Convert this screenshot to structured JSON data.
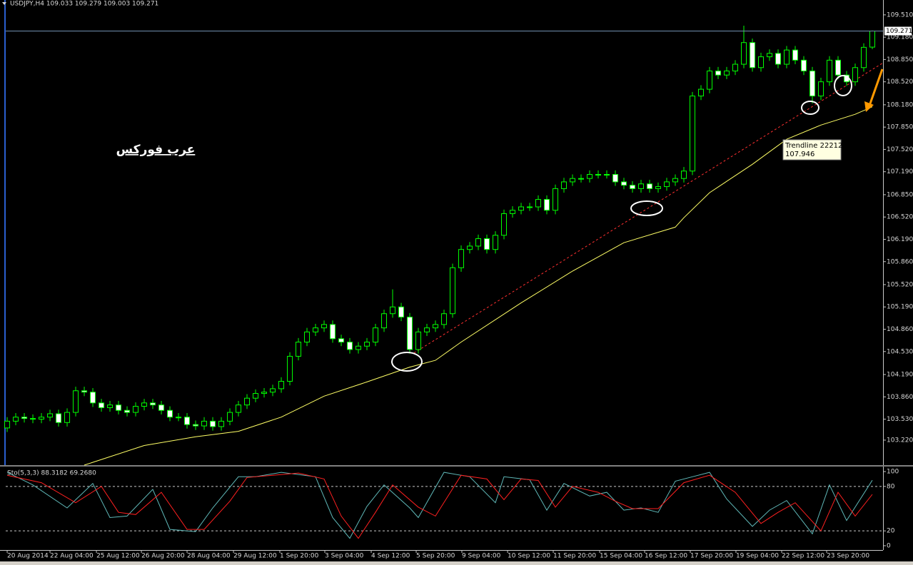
{
  "chart_data": [
    {
      "type": "candlestick",
      "title": "USDJPY,H4  109.033 109.279 109.003 109.271",
      "annotation": "عرب فوركس",
      "xlim": [
        -0.17,
        102.25
      ],
      "ylim": [
        102.85,
        109.73
      ],
      "yticks": [
        {
          "value": 103.22,
          "label": "103.220"
        },
        {
          "value": 103.53,
          "label": "103.530"
        },
        {
          "value": 103.86,
          "label": "103.860"
        },
        {
          "value": 104.19,
          "label": "104.190"
        },
        {
          "value": 104.53,
          "label": "104.530"
        },
        {
          "value": 104.86,
          "label": "104.860"
        },
        {
          "value": 105.19,
          "label": "105.190"
        },
        {
          "value": 105.52,
          "label": "105.520"
        },
        {
          "value": 105.86,
          "label": "105.860"
        },
        {
          "value": 106.19,
          "label": "106.190"
        },
        {
          "value": 106.52,
          "label": "106.520"
        },
        {
          "value": 106.85,
          "label": "106.850"
        },
        {
          "value": 107.19,
          "label": "107.190"
        },
        {
          "value": 107.52,
          "label": "107.520"
        },
        {
          "value": 107.85,
          "label": "107.850"
        },
        {
          "value": 108.18,
          "label": "108.180"
        },
        {
          "value": 108.52,
          "label": "108.520"
        },
        {
          "value": 108.85,
          "label": "108.850"
        },
        {
          "value": 109.18,
          "label": "109.180"
        },
        {
          "value": 109.51,
          "label": "109.510"
        }
      ],
      "xticks": [
        {
          "value": 0,
          "label": "20 Aug 2014"
        },
        {
          "value": 5,
          "label": "22 Aug 04:00"
        },
        {
          "value": 10.42,
          "label": "25 Aug 12:00"
        },
        {
          "value": 15.67,
          "label": "26 Aug 20:00"
        },
        {
          "value": 21,
          "label": "28 Aug 04:00"
        },
        {
          "value": 26.42,
          "label": "29 Aug 12:00"
        },
        {
          "value": 31.83,
          "label": "1 Sep 20:00"
        },
        {
          "value": 37.08,
          "label": "3 Sep 04:00"
        },
        {
          "value": 42.5,
          "label": "4 Sep 12:00"
        },
        {
          "value": 47.75,
          "label": "5 Sep 20:00"
        },
        {
          "value": 53.08,
          "label": "9 Sep 04:00"
        },
        {
          "value": 58.42,
          "label": "10 Sep 12:00"
        },
        {
          "value": 63.75,
          "label": "11 Sep 20:00"
        },
        {
          "value": 69.17,
          "label": "15 Sep 04:00"
        },
        {
          "value": 74.42,
          "label": "16 Sep 12:00"
        },
        {
          "value": 79.75,
          "label": "17 Sep 20:00"
        },
        {
          "value": 85.08,
          "label": "19 Sep 04:00"
        },
        {
          "value": 90.42,
          "label": "22 Sep 12:00"
        },
        {
          "value": 95.67,
          "label": "23 Sep 20:00"
        }
      ],
      "wick_color": "#00ff00",
      "up_fill": "#000000",
      "down_fill": "#ffffff",
      "open": [
        103.4,
        103.5,
        103.56,
        103.54,
        103.53,
        103.56,
        103.61,
        103.48,
        103.63,
        103.95,
        103.93,
        103.77,
        103.7,
        103.74,
        103.66,
        103.63,
        103.72,
        103.77,
        103.74,
        103.66,
        103.56,
        103.56,
        103.45,
        103.43,
        103.5,
        103.42,
        103.5,
        103.63,
        103.74,
        103.84,
        103.91,
        103.93,
        103.98,
        104.09,
        104.46,
        104.67,
        104.82,
        104.88,
        104.93,
        104.72,
        104.67,
        104.56,
        104.61,
        104.67,
        104.88,
        105.09,
        105.19,
        105.04,
        104.56,
        104.82,
        104.88,
        104.93,
        105.09,
        105.77,
        106.04,
        106.09,
        106.2,
        106.04,
        106.25,
        106.57,
        106.62,
        106.67,
        106.67,
        106.78,
        106.62,
        106.94,
        107.04,
        107.09,
        107.09,
        107.15,
        107.15,
        107.15,
        107.04,
        106.99,
        106.94,
        107.01,
        106.94,
        106.97,
        107.04,
        107.09,
        107.2,
        108.31,
        108.41,
        108.68,
        108.62,
        108.68,
        108.78,
        109.1,
        108.73,
        108.89,
        108.94,
        108.78,
        108.99,
        108.84,
        108.68,
        108.31,
        108.52,
        108.84,
        108.62,
        108.52,
        108.73,
        109.033
      ],
      "high": [
        103.56,
        103.62,
        103.62,
        103.6,
        103.62,
        103.67,
        103.67,
        103.69,
        104.01,
        104.01,
        103.99,
        103.83,
        103.8,
        103.8,
        103.72,
        103.78,
        103.83,
        103.83,
        103.8,
        103.72,
        103.62,
        103.62,
        103.51,
        103.56,
        103.56,
        103.56,
        103.69,
        103.8,
        103.9,
        103.97,
        103.99,
        104.04,
        104.15,
        104.52,
        104.73,
        104.88,
        104.94,
        104.99,
        104.99,
        104.78,
        104.73,
        104.67,
        104.73,
        104.94,
        105.15,
        105.45,
        105.25,
        105.1,
        104.88,
        104.94,
        104.99,
        105.15,
        105.83,
        106.1,
        106.15,
        106.26,
        106.26,
        106.31,
        106.63,
        106.68,
        106.73,
        106.73,
        106.84,
        106.84,
        107.0,
        107.1,
        107.15,
        107.15,
        107.21,
        107.21,
        107.21,
        107.21,
        107.1,
        107.05,
        107.07,
        107.07,
        107.03,
        107.1,
        107.15,
        107.26,
        108.37,
        108.47,
        108.74,
        108.74,
        108.74,
        108.84,
        109.35,
        109.16,
        108.95,
        109.0,
        109.0,
        109.05,
        109.05,
        108.9,
        108.74,
        108.58,
        108.9,
        108.9,
        108.68,
        108.79,
        109.09,
        109.279
      ],
      "low": [
        103.34,
        103.44,
        103.48,
        103.47,
        103.47,
        103.5,
        103.42,
        103.42,
        103.57,
        103.87,
        103.71,
        103.64,
        103.64,
        103.6,
        103.57,
        103.57,
        103.66,
        103.68,
        103.6,
        103.5,
        103.5,
        103.39,
        103.37,
        103.37,
        103.36,
        103.36,
        103.44,
        103.57,
        103.68,
        103.78,
        103.85,
        103.87,
        103.92,
        104.03,
        104.4,
        104.61,
        104.76,
        104.82,
        104.66,
        104.61,
        104.5,
        104.5,
        104.55,
        104.61,
        104.82,
        105.03,
        104.98,
        104.5,
        104.5,
        104.76,
        104.82,
        104.87,
        105.03,
        105.71,
        105.98,
        106.03,
        105.98,
        105.98,
        106.19,
        106.51,
        106.56,
        106.61,
        106.61,
        106.56,
        106.56,
        106.88,
        106.98,
        107.03,
        107.03,
        107.09,
        107.09,
        106.98,
        106.93,
        106.88,
        106.88,
        106.88,
        106.88,
        106.91,
        106.98,
        107.03,
        107.14,
        108.25,
        108.35,
        108.56,
        108.56,
        108.62,
        108.72,
        108.67,
        108.67,
        108.83,
        108.72,
        108.72,
        108.78,
        108.62,
        108.2,
        108.25,
        108.46,
        108.56,
        108.46,
        108.46,
        108.67,
        109.003
      ],
      "close": [
        103.5,
        103.56,
        103.54,
        103.53,
        103.56,
        103.61,
        103.48,
        103.63,
        103.95,
        103.93,
        103.77,
        103.7,
        103.74,
        103.66,
        103.63,
        103.72,
        103.77,
        103.74,
        103.66,
        103.56,
        103.56,
        103.45,
        103.43,
        103.5,
        103.42,
        103.5,
        103.63,
        103.74,
        103.84,
        103.91,
        103.93,
        103.98,
        104.09,
        104.46,
        104.67,
        104.82,
        104.88,
        104.93,
        104.72,
        104.67,
        104.56,
        104.61,
        104.67,
        104.88,
        105.09,
        105.19,
        105.04,
        104.56,
        104.82,
        104.88,
        104.93,
        105.09,
        105.77,
        106.04,
        106.09,
        106.2,
        106.04,
        106.25,
        106.57,
        106.62,
        106.67,
        106.67,
        106.78,
        106.62,
        106.94,
        107.04,
        107.09,
        107.09,
        107.15,
        107.15,
        107.15,
        107.04,
        106.99,
        106.94,
        107.01,
        106.94,
        106.97,
        107.04,
        107.09,
        107.2,
        108.31,
        108.41,
        108.68,
        108.62,
        108.68,
        108.78,
        109.1,
        108.73,
        108.89,
        108.94,
        108.78,
        108.99,
        108.84,
        108.68,
        108.31,
        108.52,
        108.84,
        108.62,
        108.52,
        108.73,
        109.03,
        109.271
      ],
      "ma": {
        "color": "#ffff66",
        "x": [
          9,
          16,
          22,
          27,
          32,
          37,
          42,
          47,
          50,
          53,
          60,
          66,
          72,
          78,
          79,
          82,
          87,
          91,
          95,
          99,
          101
        ],
        "values": [
          102.85,
          103.14,
          103.27,
          103.35,
          103.56,
          103.87,
          104.08,
          104.3,
          104.4,
          104.67,
          105.25,
          105.72,
          106.14,
          106.37,
          106.51,
          106.88,
          107.3,
          107.67,
          107.88,
          108.04,
          108.15
        ]
      },
      "trendline": {
        "name": "Trendline 22212",
        "price": 107.946,
        "color": "#ff3030",
        "x": [
          47.5,
          102.25
        ],
        "values": [
          104.51,
          108.8
        ]
      }
    },
    {
      "type": "line",
      "title": "Sto(5,3,3) 88.3182 69.2680",
      "xlim": [
        -0.17,
        102.25
      ],
      "ylim": [
        -5.8,
        105.8
      ],
      "yticks": [
        0,
        20,
        80,
        100
      ],
      "levels": [
        20,
        80
      ],
      "series": [
        {
          "color": "#5fb8b8",
          "x": [
            0,
            3,
            7,
            10,
            12,
            14,
            17,
            19,
            22,
            24,
            27,
            29,
            32,
            36,
            38,
            40,
            42,
            44,
            47,
            48,
            51,
            54,
            57,
            58,
            61,
            63,
            65,
            68,
            70,
            72,
            74,
            76,
            78,
            80,
            82,
            84,
            87,
            89,
            91,
            94,
            96,
            98,
            101
          ],
          "values": [
            99,
            82,
            51,
            84,
            38,
            40,
            76,
            22,
            19,
            51,
            93,
            93,
            99,
            93,
            38,
            10,
            53,
            82,
            51,
            38,
            99,
            93,
            58,
            93,
            89,
            48,
            84,
            67,
            72,
            48,
            51,
            45,
            87,
            93,
            99,
            63,
            26,
            48,
            61,
            16,
            82,
            34,
            88.32
          ]
        },
        {
          "color": "#ff2020",
          "x": [
            0,
            4,
            8,
            11,
            13,
            15,
            18,
            21,
            23,
            26,
            28,
            31,
            34,
            37,
            39,
            41,
            43,
            45,
            48,
            50,
            53,
            56,
            58,
            60,
            62,
            64,
            66,
            69,
            71,
            73,
            76,
            79,
            82,
            85,
            88,
            90,
            92,
            95,
            97,
            99,
            101
          ],
          "values": [
            95,
            85,
            58,
            80,
            45,
            42,
            72,
            22,
            22,
            60,
            92,
            95,
            98,
            90,
            40,
            10,
            45,
            82,
            52,
            40,
            95,
            90,
            62,
            90,
            88,
            52,
            80,
            72,
            60,
            50,
            50,
            85,
            95,
            72,
            30,
            45,
            58,
            20,
            72,
            40,
            69.27
          ]
        }
      ]
    }
  ]
}
